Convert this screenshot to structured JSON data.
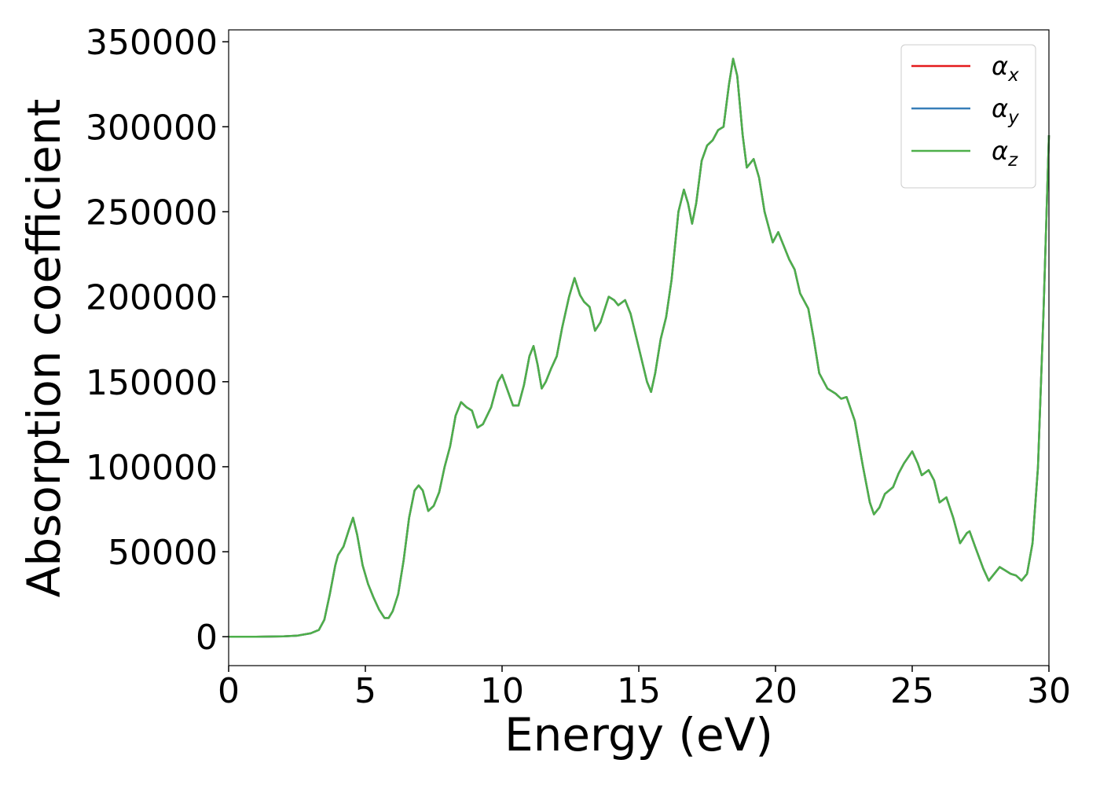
{
  "chart_data": {
    "type": "line",
    "xlabel": "Energy (eV)",
    "ylabel": "Absorption coefficient",
    "xlim": [
      0,
      30
    ],
    "xticks": [
      0,
      5,
      10,
      15,
      20,
      25,
      30
    ],
    "ylim": [
      -17000,
      357000
    ],
    "yticks": [
      0,
      50000,
      100000,
      150000,
      200000,
      250000,
      300000,
      350000
    ],
    "legend": "upper right",
    "x": [
      0,
      1,
      2,
      2.5,
      3,
      3.3,
      3.5,
      3.7,
      3.9,
      4.0,
      4.2,
      4.4,
      4.55,
      4.7,
      4.9,
      5.1,
      5.3,
      5.5,
      5.7,
      5.85,
      6.0,
      6.2,
      6.4,
      6.6,
      6.8,
      6.95,
      7.1,
      7.3,
      7.5,
      7.7,
      7.9,
      8.1,
      8.3,
      8.5,
      8.7,
      8.9,
      9.1,
      9.3,
      9.6,
      9.85,
      10.0,
      10.2,
      10.4,
      10.6,
      10.8,
      11.0,
      11.15,
      11.3,
      11.45,
      11.6,
      11.8,
      12.0,
      12.2,
      12.45,
      12.65,
      12.85,
      13.0,
      13.2,
      13.4,
      13.6,
      13.9,
      14.1,
      14.25,
      14.5,
      14.7,
      15.0,
      15.3,
      15.45,
      15.6,
      15.8,
      16.0,
      16.2,
      16.45,
      16.65,
      16.8,
      16.95,
      17.1,
      17.3,
      17.5,
      17.7,
      17.9,
      18.1,
      18.3,
      18.45,
      18.6,
      18.8,
      18.95,
      19.2,
      19.4,
      19.6,
      19.9,
      20.1,
      20.3,
      20.5,
      20.7,
      20.9,
      21.2,
      21.4,
      21.6,
      21.9,
      22.2,
      22.4,
      22.6,
      22.9,
      23.2,
      23.45,
      23.6,
      23.8,
      24.0,
      24.3,
      24.5,
      24.7,
      25.0,
      25.2,
      25.35,
      25.6,
      25.8,
      26.0,
      26.25,
      26.5,
      26.75,
      27.0,
      27.1,
      27.3,
      27.6,
      27.8,
      28.0,
      28.2,
      28.4,
      28.6,
      28.8,
      29.0,
      29.2,
      29.4,
      29.6,
      29.8,
      30.0
    ],
    "series": [
      {
        "name": "αx",
        "color": "#e41a1c",
        "values": [
          0,
          0,
          200,
          600,
          2000,
          4000,
          10000,
          25000,
          42000,
          48000,
          53000,
          63000,
          70000,
          60000,
          42000,
          31000,
          23000,
          16000,
          11000,
          11000,
          15000,
          25000,
          45000,
          70000,
          86000,
          89000,
          86000,
          74000,
          77000,
          85000,
          100000,
          112000,
          130000,
          138000,
          135000,
          133000,
          123000,
          125000,
          135000,
          150000,
          154000,
          145000,
          136000,
          136000,
          148000,
          165000,
          171000,
          160000,
          146000,
          150000,
          158000,
          165000,
          182000,
          200000,
          211000,
          201000,
          197000,
          194000,
          180000,
          185000,
          200000,
          198000,
          195000,
          198000,
          190000,
          170000,
          150000,
          144000,
          155000,
          175000,
          188000,
          210000,
          250000,
          263000,
          255000,
          243000,
          255000,
          280000,
          289000,
          292000,
          298000,
          300000,
          325000,
          340000,
          330000,
          295000,
          276000,
          281000,
          270000,
          250000,
          232000,
          238000,
          230000,
          222000,
          216000,
          202000,
          193000,
          175000,
          155000,
          146000,
          143000,
          140000,
          141000,
          127000,
          100000,
          79000,
          72000,
          76000,
          84000,
          88000,
          96000,
          102000,
          109000,
          102000,
          95000,
          98000,
          92000,
          79000,
          82000,
          70000,
          55000,
          61000,
          62000,
          53000,
          40000,
          33000,
          37000,
          41000,
          39000,
          37000,
          36000,
          33000,
          37000,
          55000,
          100000,
          190000,
          295000
        ]
      },
      {
        "name": "αy",
        "color": "#377eb8",
        "values": [
          0,
          0,
          200,
          600,
          2000,
          4000,
          10000,
          25000,
          42000,
          48000,
          53000,
          63000,
          70000,
          60000,
          42000,
          31000,
          23000,
          16000,
          11000,
          11000,
          15000,
          25000,
          45000,
          70000,
          86000,
          89000,
          86000,
          74000,
          77000,
          85000,
          100000,
          112000,
          130000,
          138000,
          135000,
          133000,
          123000,
          125000,
          135000,
          150000,
          154000,
          145000,
          136000,
          136000,
          148000,
          165000,
          171000,
          160000,
          146000,
          150000,
          158000,
          165000,
          182000,
          200000,
          211000,
          201000,
          197000,
          194000,
          180000,
          185000,
          200000,
          198000,
          195000,
          198000,
          190000,
          170000,
          150000,
          144000,
          155000,
          175000,
          188000,
          210000,
          250000,
          263000,
          255000,
          243000,
          255000,
          280000,
          289000,
          292000,
          298000,
          300000,
          325000,
          340000,
          330000,
          295000,
          276000,
          281000,
          270000,
          250000,
          232000,
          238000,
          230000,
          222000,
          216000,
          202000,
          193000,
          175000,
          155000,
          146000,
          143000,
          140000,
          141000,
          127000,
          100000,
          79000,
          72000,
          76000,
          84000,
          88000,
          96000,
          102000,
          109000,
          102000,
          95000,
          98000,
          92000,
          79000,
          82000,
          70000,
          55000,
          61000,
          62000,
          53000,
          40000,
          33000,
          37000,
          41000,
          39000,
          37000,
          36000,
          33000,
          37000,
          55000,
          100000,
          190000,
          295000
        ]
      },
      {
        "name": "αz",
        "color": "#4daf4a",
        "values": [
          0,
          0,
          200,
          600,
          2000,
          4000,
          10000,
          25000,
          42000,
          48000,
          53000,
          63000,
          70000,
          60000,
          42000,
          31000,
          23000,
          16000,
          11000,
          11000,
          15000,
          25000,
          45000,
          70000,
          86000,
          89000,
          86000,
          74000,
          77000,
          85000,
          100000,
          112000,
          130000,
          138000,
          135000,
          133000,
          123000,
          125000,
          135000,
          150000,
          154000,
          145000,
          136000,
          136000,
          148000,
          165000,
          171000,
          160000,
          146000,
          150000,
          158000,
          165000,
          182000,
          200000,
          211000,
          201000,
          197000,
          194000,
          180000,
          185000,
          200000,
          198000,
          195000,
          198000,
          190000,
          170000,
          150000,
          144000,
          155000,
          175000,
          188000,
          210000,
          250000,
          263000,
          255000,
          243000,
          255000,
          280000,
          289000,
          292000,
          298000,
          300000,
          325000,
          340000,
          330000,
          295000,
          276000,
          281000,
          270000,
          250000,
          232000,
          238000,
          230000,
          222000,
          216000,
          202000,
          193000,
          175000,
          155000,
          146000,
          143000,
          140000,
          141000,
          127000,
          100000,
          79000,
          72000,
          76000,
          84000,
          88000,
          96000,
          102000,
          109000,
          102000,
          95000,
          98000,
          92000,
          79000,
          82000,
          70000,
          55000,
          61000,
          62000,
          53000,
          40000,
          33000,
          37000,
          41000,
          39000,
          37000,
          36000,
          33000,
          37000,
          55000,
          100000,
          190000,
          295000
        ]
      }
    ]
  }
}
